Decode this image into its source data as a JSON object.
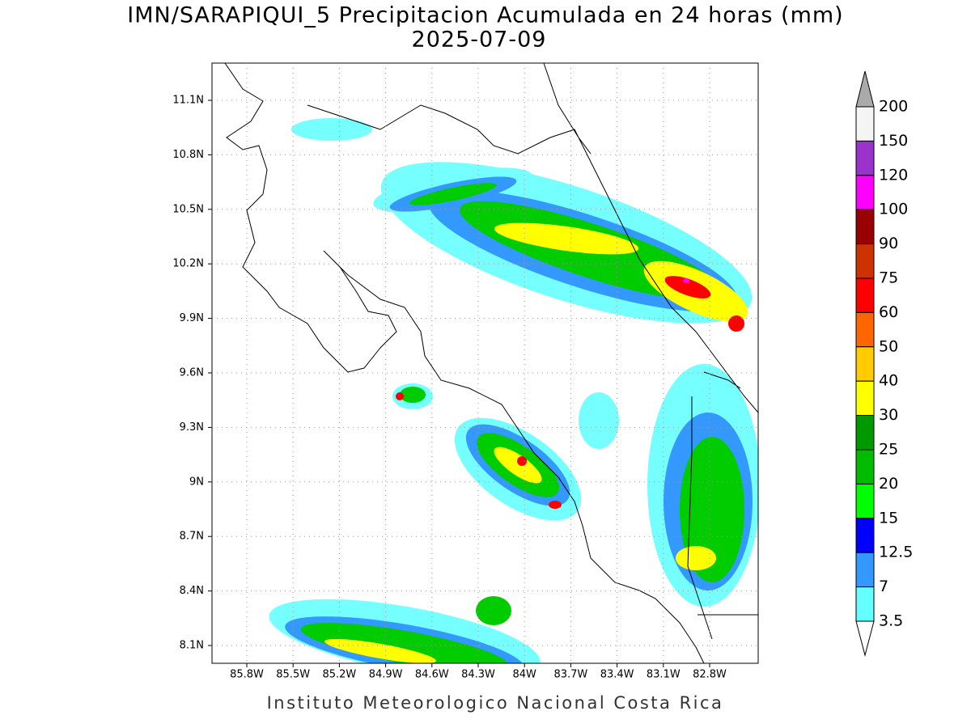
{
  "header": {
    "title": "IMN/SARAPIQUI_5 Precipitacion Acumulada en 24 horas (mm)",
    "date": "2025-07-09"
  },
  "map": {
    "lat_labels": [
      "11.1N",
      "10.8N",
      "10.5N",
      "10.2N",
      "9.9N",
      "9.6N",
      "9.3N",
      "9N",
      "8.7N",
      "8.4N",
      "8.1N"
    ],
    "lon_labels": [
      "85.8W",
      "85.5W",
      "85.2W",
      "84.9W",
      "84.6W",
      "84.3W",
      "84W",
      "83.7W",
      "83.4W",
      "83.1W",
      "82.8W"
    ]
  },
  "legend": {
    "labels": [
      "200",
      "150",
      "120",
      "100",
      "90",
      "75",
      "60",
      "50",
      "40",
      "30",
      "25",
      "20",
      "15",
      "12.5",
      "7",
      "3.5"
    ],
    "colors": [
      "#f5f5f5",
      "#9933cc",
      "#ff00ff",
      "#990000",
      "#cc3300",
      "#ff0000",
      "#ff6600",
      "#ffcc00",
      "#ffff00",
      "#009900",
      "#00bb00",
      "#00ff00",
      "#0000ff",
      "#3399ff",
      "#66ffff"
    ],
    "over_color": "#aaaaaa",
    "under_color": "#ffffff"
  },
  "footer": "Instituto Meteorologico Nacional Costa Rica"
}
